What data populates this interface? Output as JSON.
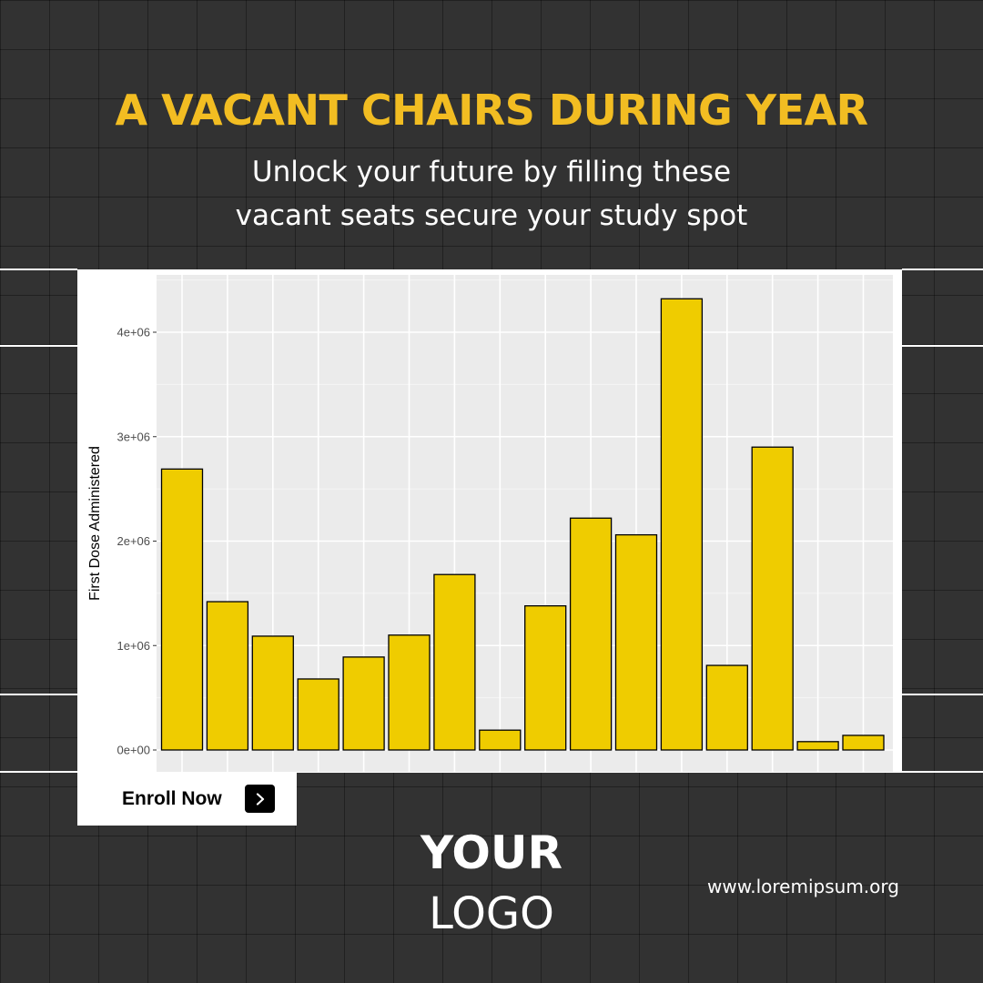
{
  "header": {
    "title": "A VACANT CHAIRS DURING YEAR",
    "subtitle_lines": [
      "Unlock your future by filling these",
      "vacant seats secure your study spot"
    ]
  },
  "cta": {
    "label": "Enroll Now",
    "icon": "chevron-right-icon"
  },
  "logo": {
    "line1": "YOUR",
    "line2": "LOGO"
  },
  "footer": {
    "website": "www.loremipsum.org"
  },
  "colors": {
    "background": "#323232",
    "title": "#f2bd22",
    "bar_fill": "#efcc00",
    "panel": "#ebebeb"
  },
  "chart_data": {
    "type": "bar",
    "title": "",
    "xlabel": "",
    "ylabel": "First Dose Administered",
    "ylim": [
      0,
      4500000
    ],
    "yticks": [
      0,
      1000000,
      2000000,
      3000000,
      4000000
    ],
    "ytick_labels": [
      "0e+00",
      "1e+06",
      "2e+06",
      "3e+06",
      "4e+06"
    ],
    "grid": true,
    "values": [
      2690000,
      1420000,
      1090000,
      680000,
      890000,
      1100000,
      1680000,
      190000,
      1380000,
      2220000,
      2060000,
      4320000,
      810000,
      2900000,
      80000,
      140000
    ]
  }
}
